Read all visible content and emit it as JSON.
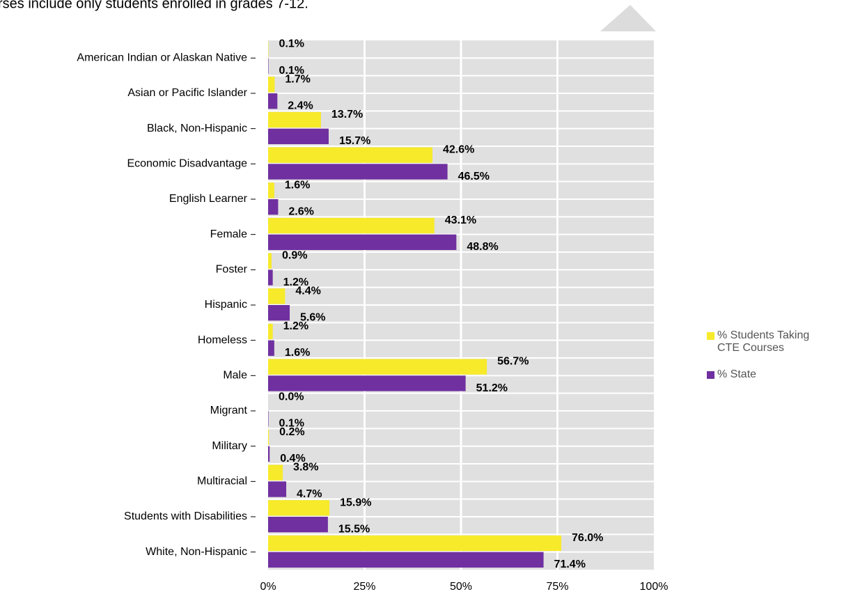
{
  "chart_data": {
    "type": "bar",
    "orientation": "horizontal",
    "subtitle": "rses include only students enrolled in grades 7-12.",
    "categories": [
      "American Indian or Alaskan Native",
      "Asian or Pacific Islander",
      "Black, Non-Hispanic",
      "Economic Disadvantage",
      "English Learner",
      "Female",
      "Foster",
      "Hispanic",
      "Homeless",
      "Male",
      "Migrant",
      "Military",
      "Multiracial",
      "Students with Disabilities",
      "White, Non-Hispanic"
    ],
    "series": [
      {
        "name": "% Students Taking CTE Courses",
        "color": "#f7ea2a",
        "values": [
          0.1,
          1.7,
          13.7,
          42.6,
          1.6,
          43.1,
          0.9,
          4.4,
          1.2,
          56.7,
          0.0,
          0.2,
          3.8,
          15.9,
          76.0
        ],
        "value_labels": [
          "0.1%",
          "1.7%",
          "13.7%",
          "42.6%",
          "1.6%",
          "43.1%",
          "0.9%",
          "4.4%",
          "1.2%",
          "56.7%",
          "0.0%",
          "0.2%",
          "3.8%",
          "15.9%",
          "76.0%"
        ]
      },
      {
        "name": "% State",
        "color": "#7030a0",
        "values": [
          0.1,
          2.4,
          15.7,
          46.5,
          2.6,
          48.8,
          1.2,
          5.6,
          1.6,
          51.2,
          0.1,
          0.4,
          4.7,
          15.5,
          71.4
        ],
        "value_labels": [
          "0.1%",
          "2.4%",
          "15.7%",
          "46.5%",
          "2.6%",
          "48.8%",
          "1.2%",
          "5.6%",
          "1.6%",
          "51.2%",
          "0.1%",
          "0.4%",
          "4.7%",
          "15.5%",
          "71.4%"
        ]
      }
    ],
    "xlim": [
      0,
      100
    ],
    "xticks": [
      {
        "value": 0,
        "label": "0%"
      },
      {
        "value": 25,
        "label": "25%"
      },
      {
        "value": 50,
        "label": "50%"
      },
      {
        "value": 75,
        "label": "75%"
      },
      {
        "value": 100,
        "label": "100%"
      }
    ],
    "grid": true,
    "legend": "right"
  }
}
